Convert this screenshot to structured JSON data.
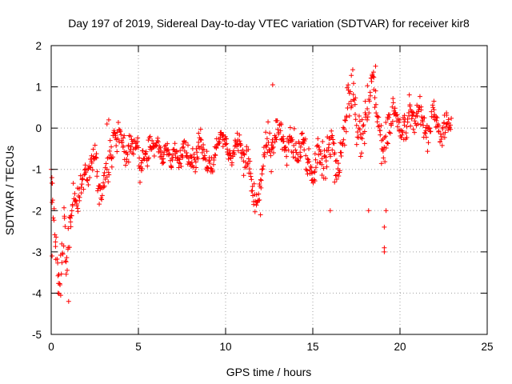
{
  "chart_data": {
    "type": "scatter",
    "title": "Day 197 of 2019, Sidereal Day-to-day VTEC variation (SDTVAR) for receiver kir8",
    "xlabel": "GPS time / hours",
    "ylabel": "SDTVAR / TECUs",
    "xlim": [
      0,
      25
    ],
    "ylim": [
      -5,
      2
    ],
    "x_ticks": [
      0,
      5,
      10,
      15,
      20,
      25
    ],
    "y_ticks": [
      -5,
      -4,
      -3,
      -2,
      -1,
      0,
      1,
      2
    ],
    "grid": true,
    "marker": "+",
    "colors": {
      "series": "#ff0000",
      "grid": "#a0a0a0",
      "axis": "#000000"
    },
    "series": [
      {
        "name": "SDTVAR",
        "sample_hours": [
          0.0,
          0.15,
          0.3,
          0.45,
          0.6,
          0.75,
          0.9,
          1.05,
          1.2,
          1.35,
          1.5,
          1.65,
          1.8,
          1.95,
          2.1,
          2.25,
          2.4,
          2.55,
          2.7,
          2.85,
          3.0,
          3.15,
          3.3,
          3.45,
          3.6,
          3.75,
          3.9,
          4.05,
          4.2,
          4.35,
          4.5,
          4.65,
          4.8,
          4.95,
          5.1,
          5.25,
          5.4,
          5.55,
          5.7,
          5.85,
          6.0,
          6.15,
          6.3,
          6.45,
          6.6,
          6.75,
          6.9,
          7.05,
          7.2,
          7.35,
          7.5,
          7.65,
          7.8,
          7.95,
          8.1,
          8.25,
          8.4,
          8.55,
          8.7,
          8.85,
          9.0,
          9.15,
          9.3,
          9.45,
          9.6,
          9.75,
          9.9,
          10.05,
          10.2,
          10.35,
          10.5,
          10.65,
          10.8,
          10.95,
          11.1,
          11.25,
          11.4,
          11.55,
          11.7,
          11.85,
          12.0,
          12.15,
          12.3,
          12.45,
          12.6,
          12.75,
          12.9,
          13.05,
          13.2,
          13.35,
          13.5,
          13.65,
          13.8,
          13.95,
          14.1,
          14.25,
          14.4,
          14.55,
          14.7,
          14.85,
          15.0,
          15.15,
          15.3,
          15.45,
          15.6,
          15.75,
          15.9,
          16.05,
          16.2,
          16.35,
          16.5,
          16.65,
          16.8,
          16.95,
          17.1,
          17.25,
          17.4,
          17.55,
          17.7,
          17.85,
          18.0,
          18.15,
          18.3,
          18.45,
          18.6,
          18.75,
          18.9,
          19.05,
          19.2,
          19.35,
          19.5,
          19.65,
          19.8,
          19.95,
          20.1,
          20.25,
          20.4,
          20.55,
          20.7,
          20.85,
          21.0,
          21.15,
          21.3,
          21.45,
          21.6,
          21.75,
          21.9,
          22.05,
          22.2,
          22.35,
          22.5,
          22.65,
          22.8,
          22.95
        ],
        "trend_values": [
          -1.0,
          -2.0,
          -3.2,
          -3.8,
          -3.0,
          -2.2,
          -3.5,
          -2.6,
          -2.0,
          -1.6,
          -1.9,
          -1.4,
          -1.2,
          -1.0,
          -1.2,
          -0.9,
          -0.7,
          -0.6,
          -1.5,
          -1.7,
          -1.3,
          -1.0,
          -0.8,
          -0.6,
          -0.4,
          -0.2,
          -0.1,
          -0.3,
          -0.5,
          -0.7,
          -0.2,
          -0.4,
          -0.6,
          -0.3,
          -1.2,
          -0.5,
          -0.8,
          -0.6,
          -0.3,
          -0.6,
          -0.4,
          -0.5,
          -0.6,
          -0.7,
          -0.5,
          -0.6,
          -0.8,
          -0.5,
          -0.7,
          -0.9,
          -0.6,
          -0.4,
          -0.6,
          -0.8,
          -0.7,
          -0.9,
          -0.5,
          -0.3,
          -0.6,
          -0.8,
          -0.9,
          -1.0,
          -0.8,
          -0.5,
          -0.3,
          -0.1,
          -0.2,
          -0.4,
          -0.6,
          -0.8,
          -0.5,
          -0.4,
          -0.3,
          -0.6,
          -0.8,
          -0.5,
          -1.2,
          -1.5,
          -1.7,
          -1.9,
          -1.4,
          -0.8,
          -0.5,
          -0.3,
          -0.6,
          -0.4,
          -0.2,
          0.1,
          -0.1,
          -0.4,
          -0.6,
          -0.4,
          -0.2,
          -0.5,
          -0.8,
          -0.6,
          -0.3,
          -0.5,
          -0.8,
          -1.0,
          -1.2,
          -0.9,
          -0.5,
          -0.7,
          -1.0,
          -0.8,
          -0.4,
          -0.3,
          -0.6,
          -0.8,
          -1.0,
          -0.6,
          -0.2,
          0.2,
          0.6,
          0.9,
          0.4,
          0.0,
          -0.3,
          -0.1,
          0.2,
          0.5,
          0.8,
          1.0,
          0.6,
          0.2,
          -0.2,
          -0.5,
          -0.3,
          0.0,
          0.2,
          0.4,
          0.3,
          0.1,
          -0.2,
          0.0,
          0.2,
          0.5,
          0.3,
          0.1,
          0.3,
          0.4,
          0.2,
          0.0,
          -0.2,
          0.1,
          0.3,
          0.2,
          -0.1,
          -0.3,
          0.0,
          0.2,
          0.1,
          0.0
        ],
        "spread_tecu": [
          0.3,
          0.6,
          0.7,
          0.6,
          0.8,
          0.9,
          0.8,
          0.8,
          0.7,
          0.6,
          0.6,
          0.5,
          0.5,
          0.4,
          0.5,
          0.4,
          0.4,
          0.4,
          0.6,
          0.6,
          0.5,
          0.5,
          0.6,
          0.6,
          0.6,
          0.6,
          0.5,
          0.5,
          0.6,
          0.6,
          0.5,
          0.5,
          0.5,
          0.5,
          0.6,
          0.5,
          0.5,
          0.5,
          0.4,
          0.4,
          0.4,
          0.4,
          0.4,
          0.4,
          0.3,
          0.3,
          0.3,
          0.3,
          0.3,
          0.3,
          0.3,
          0.3,
          0.3,
          0.3,
          0.4,
          0.4,
          0.4,
          0.4,
          0.4,
          0.4,
          0.4,
          0.4,
          0.4,
          0.4,
          0.3,
          0.3,
          0.3,
          0.3,
          0.3,
          0.3,
          0.3,
          0.3,
          0.3,
          0.4,
          0.5,
          0.5,
          0.6,
          0.6,
          0.5,
          0.4,
          0.5,
          0.6,
          0.7,
          0.7,
          0.7,
          0.6,
          0.6,
          0.6,
          0.6,
          0.6,
          0.6,
          0.6,
          0.6,
          0.6,
          0.6,
          0.6,
          0.6,
          0.6,
          0.6,
          0.6,
          0.6,
          0.6,
          0.6,
          0.7,
          0.7,
          0.7,
          0.7,
          0.7,
          0.8,
          0.8,
          0.8,
          0.8,
          0.8,
          0.9,
          0.9,
          0.9,
          0.9,
          0.9,
          0.9,
          0.9,
          0.9,
          0.8,
          0.8,
          0.8,
          0.8,
          0.8,
          0.8,
          0.8,
          0.8,
          0.8,
          0.7,
          0.6,
          0.6,
          0.5,
          0.5,
          0.5,
          0.5,
          0.5,
          0.5,
          0.5,
          0.5,
          0.5,
          0.5,
          0.5,
          0.5,
          0.5,
          0.5,
          0.5,
          0.5,
          0.5,
          0.4,
          0.4,
          0.4,
          0.4
        ],
        "points_per_sample": 6,
        "isolated_points": [
          {
            "x": 19.1,
            "y": -3.0
          },
          {
            "x": 19.1,
            "y": -2.9
          },
          {
            "x": 19.2,
            "y": -2.0
          },
          {
            "x": 19.1,
            "y": -2.4
          },
          {
            "x": 18.2,
            "y": -2.0
          },
          {
            "x": 12.7,
            "y": 1.05
          },
          {
            "x": 3.2,
            "y": 0.1
          },
          {
            "x": 3.3,
            "y": 0.2
          },
          {
            "x": 0.0,
            "y": -1.0
          },
          {
            "x": 0.05,
            "y": -1.8
          },
          {
            "x": 0.05,
            "y": -3.1
          },
          {
            "x": 1.0,
            "y": -4.2
          },
          {
            "x": 0.4,
            "y": -4.0
          },
          {
            "x": 12.0,
            "y": -2.1
          },
          {
            "x": 16.0,
            "y": -2.0
          },
          {
            "x": 18.6,
            "y": 1.5
          }
        ]
      }
    ]
  }
}
